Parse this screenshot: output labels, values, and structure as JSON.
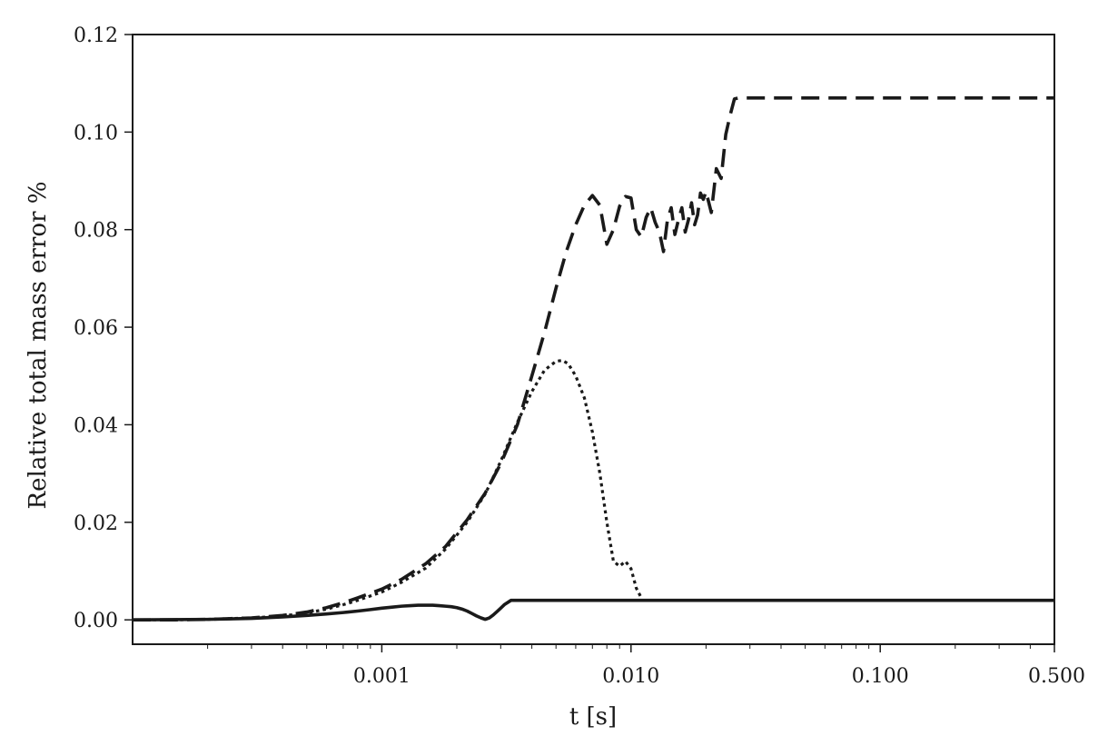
{
  "chart_data": {
    "type": "line",
    "title": "",
    "xlabel": "t [s]",
    "ylabel": "Relative total mass error %",
    "x_scale": "log",
    "xlim": [
      0.0001,
      0.5
    ],
    "ylim": [
      -0.005,
      0.12
    ],
    "x_ticks": [
      0.001,
      0.01,
      0.1,
      0.5
    ],
    "x_tick_labels": [
      "0.001",
      "0.010",
      "0.100",
      "0.500"
    ],
    "y_ticks": [
      0.0,
      0.02,
      0.04,
      0.06,
      0.08,
      0.1,
      0.12
    ],
    "y_tick_labels": [
      "0.00",
      "0.02",
      "0.04",
      "0.06",
      "0.08",
      "0.10",
      "0.12"
    ],
    "grid": false,
    "legend": "none",
    "series": [
      {
        "style": "dashed",
        "color": "#1a1a1a",
        "x": [
          0.0001,
          0.00015,
          0.0002,
          0.0003,
          0.0004,
          0.0005,
          0.0006,
          0.0007,
          0.0008,
          0.001,
          0.0012,
          0.0015,
          0.0018,
          0.0022,
          0.0026,
          0.003,
          0.0035,
          0.004,
          0.0045,
          0.005,
          0.0055,
          0.006,
          0.0065,
          0.007,
          0.0075,
          0.008,
          0.0085,
          0.009,
          0.0095,
          0.01,
          0.0105,
          0.011,
          0.0115,
          0.012,
          0.0125,
          0.013,
          0.0135,
          0.014,
          0.0145,
          0.015,
          0.0155,
          0.016,
          0.0165,
          0.017,
          0.0175,
          0.018,
          0.0185,
          0.019,
          0.0195,
          0.02,
          0.021,
          0.022,
          0.023,
          0.024,
          0.025,
          0.026,
          0.027,
          0.03,
          0.05,
          0.1,
          0.2,
          0.3,
          0.5
        ],
        "y": [
          0.0,
          0.0,
          0.0001,
          0.0004,
          0.0009,
          0.0016,
          0.0025,
          0.0035,
          0.0045,
          0.0063,
          0.0083,
          0.0115,
          0.015,
          0.0205,
          0.026,
          0.032,
          0.04,
          0.05,
          0.059,
          0.068,
          0.0755,
          0.081,
          0.085,
          0.087,
          0.085,
          0.077,
          0.08,
          0.0848,
          0.0868,
          0.0865,
          0.08,
          0.0785,
          0.0825,
          0.0845,
          0.0815,
          0.0795,
          0.0755,
          0.082,
          0.0845,
          0.079,
          0.082,
          0.0845,
          0.0795,
          0.082,
          0.0855,
          0.081,
          0.083,
          0.0875,
          0.0862,
          0.0878,
          0.0835,
          0.0925,
          0.0905,
          0.0995,
          0.1035,
          0.1068,
          0.107,
          0.107,
          0.107,
          0.107,
          0.107,
          0.107,
          0.107
        ]
      },
      {
        "style": "dotted",
        "color": "#1a1a1a",
        "x": [
          0.0001,
          0.00015,
          0.0002,
          0.0003,
          0.0004,
          0.0005,
          0.0006,
          0.0007,
          0.0008,
          0.001,
          0.0012,
          0.0015,
          0.0018,
          0.0022,
          0.0026,
          0.003,
          0.0035,
          0.004,
          0.0045,
          0.005,
          0.0053,
          0.0056,
          0.006,
          0.0065,
          0.007,
          0.0075,
          0.008,
          0.0085,
          0.009,
          0.0095,
          0.01,
          0.0105,
          0.011
        ],
        "y": [
          0.0,
          0.0,
          0.0001,
          0.0004,
          0.0008,
          0.0014,
          0.0022,
          0.0031,
          0.004,
          0.0057,
          0.0077,
          0.0106,
          0.0145,
          0.02,
          0.0258,
          0.0325,
          0.0405,
          0.0468,
          0.0512,
          0.053,
          0.0532,
          0.0525,
          0.05,
          0.0455,
          0.0385,
          0.03,
          0.02,
          0.012,
          0.011,
          0.012,
          0.0105,
          0.0065,
          0.0045
        ]
      },
      {
        "style": "solid",
        "color": "#1a1a1a",
        "x": [
          0.0001,
          0.0002,
          0.0003,
          0.0004,
          0.0005,
          0.0006,
          0.0007,
          0.0008,
          0.0009,
          0.001,
          0.0011,
          0.0012,
          0.0013,
          0.0014,
          0.0015,
          0.0016,
          0.0017,
          0.0018,
          0.0019,
          0.002,
          0.0021,
          0.0022,
          0.0023,
          0.0024,
          0.0025,
          0.0026,
          0.0027,
          0.0028,
          0.0029,
          0.003,
          0.0031,
          0.0033,
          0.005,
          0.01,
          0.05,
          0.1,
          0.5
        ],
        "y": [
          0.0,
          0.0001,
          0.0003,
          0.0006,
          0.0009,
          0.0012,
          0.0015,
          0.0018,
          0.0021,
          0.0024,
          0.0026,
          0.0028,
          0.0029,
          0.003,
          0.003,
          0.003,
          0.0029,
          0.0028,
          0.0027,
          0.0025,
          0.0022,
          0.0018,
          0.0013,
          0.0008,
          0.0004,
          0.0001,
          0.0004,
          0.001,
          0.0017,
          0.0024,
          0.0031,
          0.004,
          0.004,
          0.004,
          0.004,
          0.004,
          0.004
        ]
      }
    ]
  }
}
